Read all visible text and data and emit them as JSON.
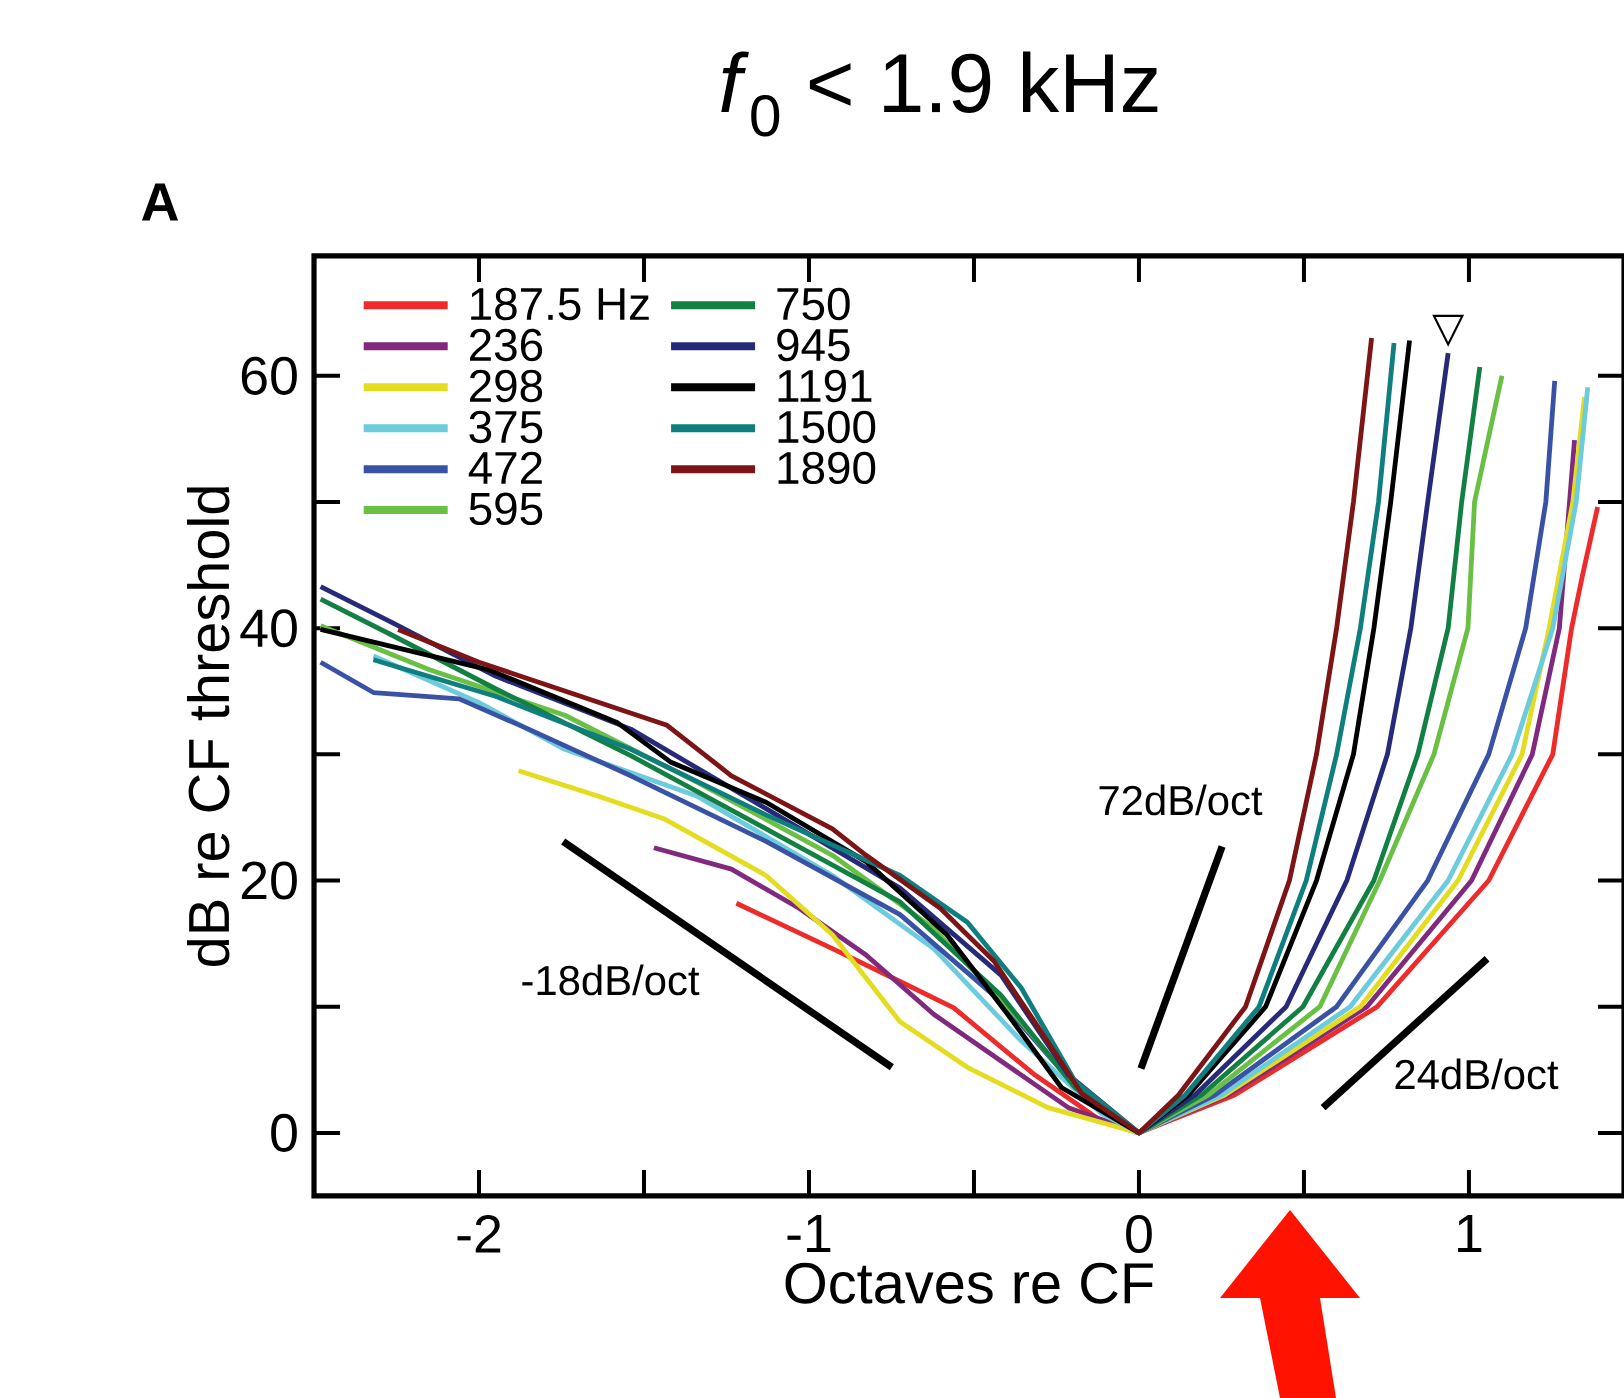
{
  "chart_data": {
    "type": "line",
    "title": "*f*$_{0}$ < 1.9 kHz",
    "xlabel": "Octaves re CF",
    "ylabel": "dB re CF threshold",
    "xlim": [
      -2.5,
      1.47
    ],
    "ylim": [
      -5,
      69.5
    ],
    "xticks": [
      -2,
      {
        "value": -1.5,
        "label": null
      },
      -1,
      {
        "value": -0.5,
        "label": null
      },
      0,
      {
        "value": 0.5,
        "label": null
      },
      1
    ],
    "yticks": [
      0,
      {
        "value": 10,
        "label": null
      },
      20,
      {
        "value": 30,
        "label": null
      },
      40,
      {
        "value": 50,
        "label": null
      },
      60
    ],
    "grid": false,
    "legend": "top left",
    "line_style": "solid",
    "annotations": [
      "A",
      "-18dB/oct",
      "72dB/oct",
      "24dB/oct",
      {
        "text": "▽",
        "x": 0.937,
        "y": 61.8
      }
    ],
    "series": [
      {
        "name": "187.5 Hz",
        "color": "#ee2b2b",
        "x": [
          -1.22,
          -0.929,
          -0.724,
          -0.561,
          -0.316,
          -0.112,
          0,
          0.29,
          0.722,
          1.06,
          1.254,
          1.311,
          1.345,
          1.39
        ],
        "values": [
          18.2,
          14.6,
          12.0,
          9.9,
          4.6,
          0.9,
          0,
          3,
          10,
          20,
          30,
          40,
          44.3,
          49.6
        ]
      },
      {
        "name": "236",
        "color": "#7f2a7f",
        "x": [
          -1.47,
          -1.235,
          -1.03,
          -0.827,
          -0.622,
          -0.418,
          -0.214,
          0,
          0.27,
          0.691,
          1.008,
          1.192,
          1.274,
          1.32
        ],
        "values": [
          22.6,
          20.9,
          17.8,
          14.1,
          9.4,
          5.7,
          2.0,
          0,
          3,
          10,
          20,
          30,
          40,
          54.9
        ]
      },
      {
        "name": "298",
        "color": "#e3dc1f",
        "x": [
          -1.88,
          -1.64,
          -1.44,
          -1.13,
          -0.929,
          -0.724,
          -0.52,
          -0.276,
          0,
          0.26,
          0.671,
          0.967,
          1.161,
          1.243,
          1.315,
          1.35
        ],
        "values": [
          28.7,
          26.7,
          24.9,
          20.4,
          15.7,
          8.8,
          5.2,
          2.0,
          0,
          3,
          10,
          20,
          30,
          40,
          50,
          58.3
        ]
      },
      {
        "name": "375",
        "color": "#6ccbdc",
        "x": [
          -2.32,
          -2.0,
          -1.74,
          -1.34,
          -0.929,
          -0.622,
          -0.357,
          -0.112,
          0,
          0.25,
          0.64,
          0.937,
          1.131,
          1.254,
          1.325,
          1.36
        ],
        "values": [
          37.8,
          34.1,
          30.4,
          26.7,
          20.4,
          14.6,
          7.3,
          1.5,
          0,
          3,
          10,
          20,
          30,
          40,
          50,
          59.1
        ]
      },
      {
        "name": "472",
        "color": "#3a52a5",
        "x": [
          -2.48,
          -2.32,
          -2.06,
          -1.85,
          -1.54,
          -1.13,
          -0.724,
          -0.418,
          -0.173,
          0,
          0.23,
          0.599,
          0.875,
          1.06,
          1.172,
          1.233,
          1.26
        ],
        "values": [
          37.3,
          34.9,
          34.4,
          32.0,
          28.3,
          23.1,
          17.3,
          10.4,
          3.1,
          0,
          3,
          10,
          20,
          30,
          40,
          50,
          59.6
        ]
      },
      {
        "name": "595",
        "color": "#6abf45",
        "x": [
          -2.48,
          -2.15,
          -1.74,
          -1.34,
          -0.929,
          -0.622,
          -0.357,
          -0.173,
          0,
          0.21,
          0.548,
          0.73,
          0.894,
          0.997,
          1.017,
          1.1
        ],
        "values": [
          40.2,
          36.7,
          33.1,
          27.8,
          22.0,
          16.2,
          8.8,
          3.1,
          0,
          3,
          10,
          20,
          30,
          40,
          50,
          60.0
        ]
      },
      {
        "name": "750",
        "color": "#138043",
        "x": [
          -2.48,
          -2.26,
          -1.95,
          -1.54,
          -1.13,
          -0.724,
          -0.418,
          -0.194,
          0,
          0.19,
          0.497,
          0.712,
          0.845,
          0.937,
          0.978,
          1.033
        ],
        "values": [
          42.3,
          39.4,
          35.2,
          29.9,
          24.1,
          18.3,
          10.9,
          3.6,
          0,
          3,
          10,
          20,
          30,
          40,
          50,
          60.7
        ]
      },
      {
        "name": "945",
        "color": "#262a78",
        "x": [
          -2.48,
          -2.26,
          -1.95,
          -1.54,
          -1.13,
          -0.724,
          -0.418,
          -0.214,
          0,
          0.17,
          0.446,
          0.63,
          0.753,
          0.824,
          0.875,
          0.937
        ],
        "values": [
          43.3,
          40.4,
          36.2,
          32.0,
          25.7,
          19.4,
          12.5,
          4.6,
          0,
          3,
          10,
          20,
          30,
          40,
          50,
          61.8
        ]
      },
      {
        "name": "1191",
        "color": "#000000",
        "x": [
          -2.48,
          -1.97,
          -1.58,
          -1.42,
          -1.13,
          -0.827,
          -0.582,
          -0.398,
          -0.235,
          0,
          0.15,
          0.384,
          0.538,
          0.65,
          0.712,
          0.763,
          0.82
        ],
        "values": [
          39.9,
          36.7,
          32.5,
          29.4,
          26.2,
          21.5,
          15.7,
          9.4,
          3.6,
          0,
          3,
          10,
          20,
          30,
          40,
          50,
          62.8
        ]
      },
      {
        "name": "1500",
        "color": "#0f7e7e",
        "x": [
          -2.32,
          -1.95,
          -1.54,
          -1.13,
          -0.724,
          -0.52,
          -0.357,
          -0.194,
          0,
          0.14,
          0.364,
          0.507,
          0.599,
          0.671,
          0.726,
          0.773
        ],
        "values": [
          37.5,
          34.6,
          30.4,
          25.2,
          20.4,
          16.7,
          11.5,
          4.1,
          0,
          3,
          10,
          20,
          30,
          40,
          50,
          62.6
        ]
      },
      {
        "name": "1890",
        "color": "#7d1416",
        "x": [
          -2.245,
          -2.0,
          -1.43,
          -1.235,
          -0.929,
          -0.827,
          -0.602,
          -0.439,
          -0.316,
          -0.173,
          0,
          0.12,
          0.323,
          0.456,
          0.538,
          0.599,
          0.65,
          0.705
        ],
        "values": [
          39.9,
          37.3,
          32.3,
          28.3,
          24.1,
          22.0,
          17.8,
          13.6,
          8.8,
          3.1,
          0,
          3,
          10,
          20,
          30,
          40,
          50,
          63.0
        ]
      },
      {
        "color": "#000000",
        "x": [
          -1.745,
          -0.749
        ],
        "values": [
          23.1,
          5.2
        ]
      },
      {
        "color": "#000000",
        "x": [
          0.006,
          0.252
        ],
        "values": [
          5.1,
          22.7
        ]
      },
      {
        "color": "#000000",
        "x": [
          0.558,
          1.055
        ],
        "values": [
          2.0,
          13.8
        ]
      }
    ]
  }
}
